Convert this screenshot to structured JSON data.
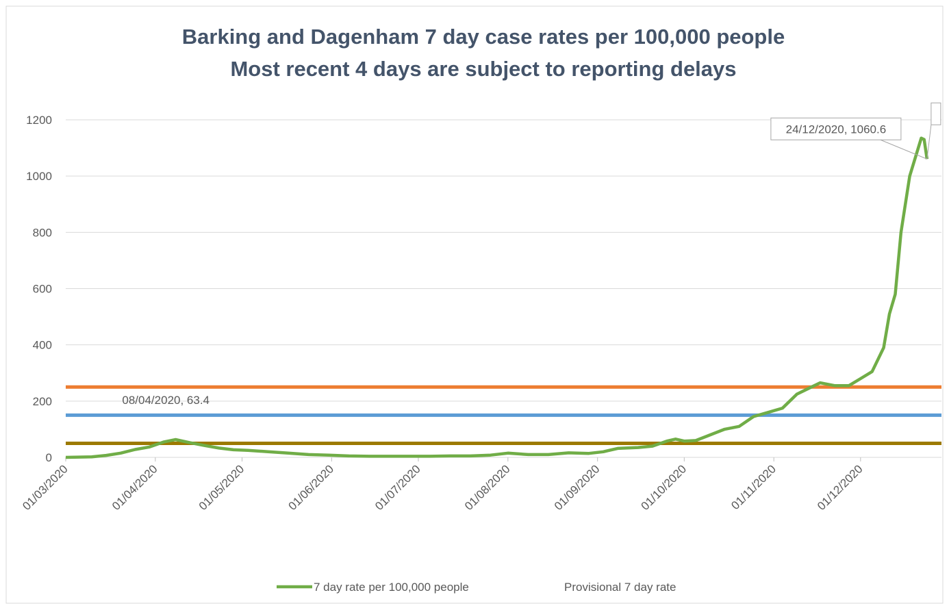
{
  "chart_data": {
    "type": "line",
    "title": "Barking and Dagenham 7 day case rates per 100,000 people",
    "subtitle": "Most recent 4 days are subject to reporting delays",
    "x": [
      "01/03/2020",
      "10/03/2020",
      "15/03/2020",
      "20/03/2020",
      "25/03/2020",
      "30/03/2020",
      "04/04/2020",
      "08/04/2020",
      "13/04/2020",
      "18/04/2020",
      "23/04/2020",
      "28/04/2020",
      "03/05/2020",
      "10/05/2020",
      "17/05/2020",
      "24/05/2020",
      "31/05/2020",
      "07/06/2020",
      "14/06/2020",
      "21/06/2020",
      "28/06/2020",
      "05/07/2020",
      "12/07/2020",
      "19/07/2020",
      "26/07/2020",
      "01/08/2020",
      "08/08/2020",
      "15/08/2020",
      "22/08/2020",
      "29/08/2020",
      "03/09/2020",
      "08/09/2020",
      "15/09/2020",
      "20/09/2020",
      "25/09/2020",
      "28/09/2020",
      "01/10/2020",
      "05/10/2020",
      "10/10/2020",
      "15/10/2020",
      "20/10/2020",
      "25/10/2020",
      "30/10/2020",
      "04/11/2020",
      "09/11/2020",
      "14/11/2020",
      "17/11/2020",
      "22/11/2020",
      "27/11/2020",
      "01/12/2020",
      "05/12/2020",
      "09/12/2020",
      "11/12/2020",
      "13/12/2020",
      "15/12/2020",
      "18/12/2020",
      "22/12/2020",
      "23/12/2020",
      "24/12/2020"
    ],
    "series": [
      {
        "name": "7 day rate per 100,000 people",
        "color": "#70ad47",
        "values": [
          0,
          2,
          7,
          15,
          28,
          37,
          55,
          63.4,
          52,
          42,
          33,
          27,
          25,
          20,
          15,
          10,
          8,
          5,
          4,
          4,
          4,
          4,
          5,
          5,
          8,
          15,
          10,
          10,
          16,
          14,
          20,
          32,
          35,
          40,
          58,
          65,
          58,
          60,
          80,
          100,
          110,
          145,
          160,
          175,
          225,
          250,
          265,
          255,
          255,
          280,
          305,
          390,
          510,
          580,
          800,
          1000,
          1135,
          1130,
          1060.6
        ]
      },
      {
        "name": "Provisional 7 day rate",
        "color": "none",
        "values": [
          null,
          null,
          null,
          null,
          null,
          null,
          null,
          null,
          null,
          null,
          null,
          null,
          null,
          null,
          null,
          null,
          null,
          null,
          null,
          null,
          null,
          null,
          null,
          null,
          null,
          null,
          null,
          null,
          null,
          null,
          null,
          null,
          null,
          null,
          null,
          null,
          null,
          null,
          null,
          null,
          null,
          null,
          null,
          null,
          null,
          null,
          null,
          null,
          null,
          null,
          null,
          null,
          null,
          null,
          null,
          null,
          null,
          null,
          null
        ]
      }
    ],
    "reference_lines": [
      {
        "value": 250,
        "color": "#ed7d31"
      },
      {
        "value": 150,
        "color": "#5b9bd5"
      },
      {
        "value": 50,
        "color": "#9c7a00"
      }
    ],
    "annotations": [
      {
        "text": "08/04/2020, 63.4",
        "x": "08/04/2020",
        "y": 63.4
      },
      {
        "text": "24/12/2020, 1060.6",
        "x": "24/12/2020",
        "y": 1060.6
      }
    ],
    "xlim": [
      "01/03/2020",
      "29/12/2020"
    ],
    "xticks": [
      "01/03/2020",
      "01/04/2020",
      "01/05/2020",
      "01/06/2020",
      "01/07/2020",
      "01/08/2020",
      "01/09/2020",
      "01/10/2020",
      "01/11/2020",
      "01/12/2020"
    ],
    "ylim": [
      0,
      1200
    ],
    "yticks": [
      0,
      200,
      400,
      600,
      800,
      1000,
      1200
    ],
    "grid": true,
    "legend": "bottom"
  }
}
